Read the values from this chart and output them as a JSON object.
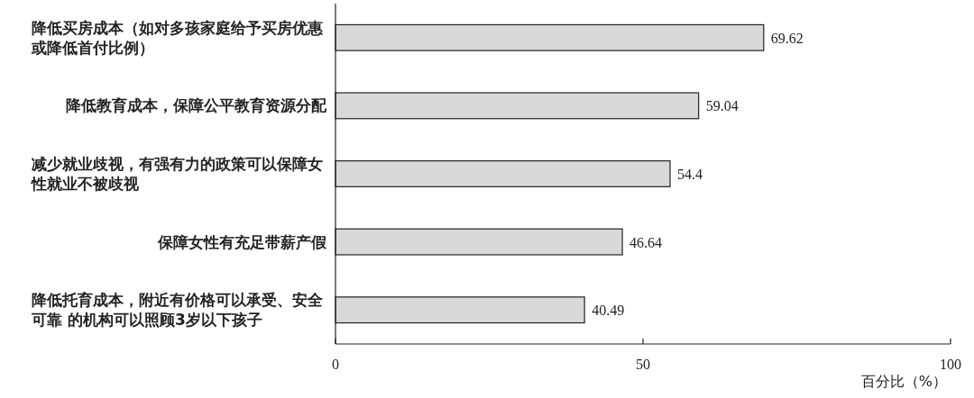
{
  "chart_data": {
    "type": "bar",
    "orientation": "horizontal",
    "xlabel": "百分比（%）",
    "categories": [
      "降低买房成本（如对多孩家庭给予买房优惠或降低首付比例）",
      "降低教育成本，保障公平教育资源分配",
      "减少就业歧视，有强有力的政策可以保障女性就业不被歧视",
      "保障女性有充足带薪产假",
      "降低托育成本，附近有价格可以承受、安全可靠 的机构可以照顾3岁以下孩子"
    ],
    "values": [
      69.62,
      59.04,
      54.4,
      46.64,
      40.49
    ],
    "color": "#d9d9d9",
    "xlim": [
      0,
      100
    ],
    "xticks": [
      0,
      50,
      100
    ],
    "data_labels": true
  }
}
